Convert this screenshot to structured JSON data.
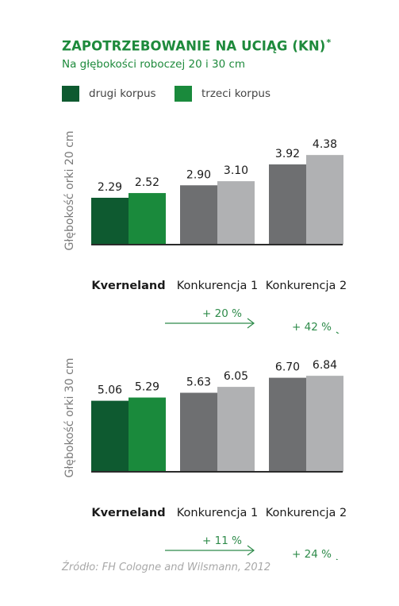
{
  "title": "ZAPOTRZEBOWANIE NA UCIĄG (KN)",
  "title_marker": "*",
  "subtitle": "Na głębokości roboczej 20 i 30 cm",
  "source": "Źródło: FH Cologne and Wilsmann, 2012",
  "colors": {
    "title": "#1e8a3c",
    "kverneland_drugi": "#0e5a30",
    "kverneland_trzeci": "#1a8a3c",
    "konkurencja_drugi": "#6e6f71",
    "konkurencja_trzeci": "#b0b1b3",
    "axis_label": "#7a7a7a",
    "baseline": "#2b2b2b",
    "arrow": "#2e8b4a"
  },
  "legend": {
    "items": [
      {
        "label": "drugi korpus",
        "color": "#0e5a30"
      },
      {
        "label": "trzeci korpus",
        "color": "#1a8a3c"
      }
    ]
  },
  "chart_data": [
    {
      "type": "bar",
      "ylabel": "Głębokość orki 20 cm",
      "categories": [
        "Kverneland",
        "Konkurencja 1",
        "Konkurencja 2"
      ],
      "series": [
        {
          "name": "drugi korpus",
          "values": [
            2.29,
            2.9,
            3.92
          ]
        },
        {
          "name": "trzeci korpus",
          "values": [
            2.52,
            3.1,
            4.38
          ]
        }
      ],
      "value_labels": [
        [
          "2.29",
          "2.52"
        ],
        [
          "2.90",
          "3.10"
        ],
        [
          "3.92",
          "4.38"
        ]
      ],
      "ylim": [
        0,
        5.24
      ],
      "comparisons": [
        {
          "label": "+ 20 %",
          "target": "Konkurencja 1"
        },
        {
          "label": "+ 42 %",
          "target": "Konkurencja 2"
        }
      ]
    },
    {
      "type": "bar",
      "ylabel": "Głębokość orki 30 cm",
      "categories": [
        "Kverneland",
        "Konkurencja 1",
        "Konkurencja 2"
      ],
      "series": [
        {
          "name": "drugi korpus",
          "values": [
            5.06,
            5.63,
            6.7
          ]
        },
        {
          "name": "trzeci korpus",
          "values": [
            5.29,
            6.05,
            6.84
          ]
        }
      ],
      "value_labels": [
        [
          "5.06",
          "5.29"
        ],
        [
          "5.63",
          "6.05"
        ],
        [
          "6.70",
          "6.84"
        ]
      ],
      "ylim": [
        0,
        7.64
      ],
      "comparisons": [
        {
          "label": "+ 11 %",
          "target": "Konkurencja 1"
        },
        {
          "label": "+ 24 %",
          "target": "Konkurencja 2"
        }
      ]
    }
  ]
}
